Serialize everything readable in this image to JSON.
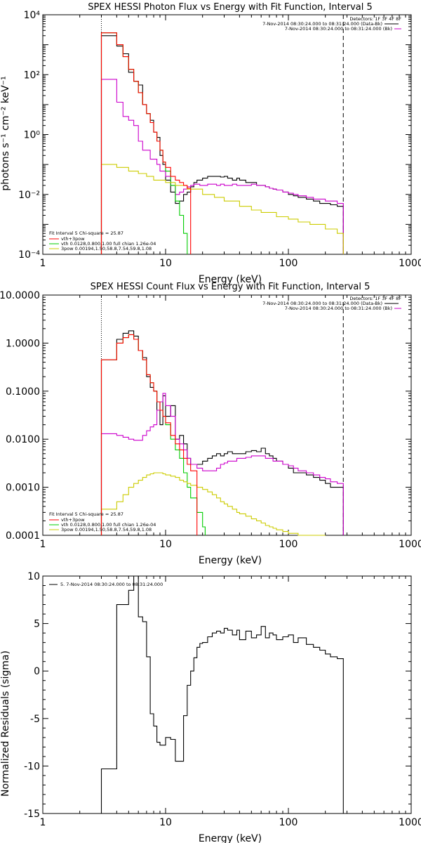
{
  "chart_data": [
    {
      "id": "photon",
      "type": "line",
      "title": "SPEX HESSI Photon Flux vs Energy with Fit Function, Interval 5",
      "xlabel": "Energy (keV)",
      "ylabel": "photons s⁻¹ cm⁻² keV⁻¹",
      "xlog": true,
      "ylog": true,
      "xlim": [
        1,
        1000
      ],
      "ylim": [
        0.0001,
        10000
      ],
      "xticks": [
        1,
        10,
        100,
        1000
      ],
      "xtick_labels": [
        "1",
        "10",
        "100",
        "1000"
      ],
      "yticks": [
        0.0001,
        0.01,
        1,
        100,
        10000
      ],
      "ytick_labels": [
        "10⁻⁴",
        "10⁻²",
        "10⁰",
        "10²",
        "10⁴"
      ],
      "vlines": [
        {
          "x": 3,
          "style": "dotted"
        },
        {
          "x": 280,
          "style": "dashed"
        }
      ],
      "detectors_line": "Detectors: 1F 3F 4F 8F",
      "header_lines": [
        {
          "text": "7-Nov-2014 08:30:24.000 to 08:31:24.000 (Data-Bk)",
          "color": "#000000"
        },
        {
          "text": "7-Nov-2014 08:30:24.000 to 08:31:24.000 (Bk)",
          "color": "#cc00cc"
        }
      ],
      "fit_header": "Fit Interval 5   Chi-square = 25.87",
      "fit_legend": [
        {
          "text": "vth+3pow",
          "color": "#ff0000"
        },
        {
          "text": "vth 0.0128,0.800,1.00  full chian 1.26e-04",
          "color": "#00cc00"
        },
        {
          "text": "3pow 0.00194,1.50,58.8,7.54,59.8,1.08",
          "color": "#cccc00"
        }
      ],
      "series": [
        {
          "color": "#000000",
          "x": [
            3,
            3.5,
            4,
            4.5,
            5,
            5.5,
            6,
            6.5,
            7,
            7.5,
            8,
            8.5,
            9,
            9.5,
            10,
            11,
            12,
            13,
            14,
            15,
            16,
            17,
            18,
            19,
            20,
            22,
            24,
            26,
            28,
            30,
            32,
            35,
            38,
            40,
            45,
            50,
            55,
            60,
            65,
            70,
            75,
            80,
            90,
            100,
            110,
            120,
            140,
            160,
            180,
            200,
            220,
            250,
            280
          ],
          "y": [
            2000,
            2000,
            900,
            500,
            120,
            60,
            45,
            10,
            5,
            3,
            1.2,
            0.8,
            0.2,
            0.1,
            0.03,
            0.012,
            0.005,
            0.006,
            0.01,
            0.012,
            0.018,
            0.025,
            0.03,
            0.03,
            0.035,
            0.04,
            0.04,
            0.04,
            0.038,
            0.04,
            0.035,
            0.03,
            0.035,
            0.03,
            0.025,
            0.025,
            0.02,
            0.02,
            0.018,
            0.016,
            0.015,
            0.014,
            0.012,
            0.01,
            0.009,
            0.008,
            0.007,
            0.006,
            0.005,
            0.005,
            0.0045,
            0.004,
            0.004
          ]
        },
        {
          "color": "#cc00cc",
          "x": [
            3,
            3.5,
            4,
            4.5,
            5,
            5.5,
            6,
            6.5,
            7,
            7.5,
            8,
            8.5,
            9,
            9.5,
            10,
            11,
            12,
            13,
            14,
            15,
            16,
            17,
            18,
            19,
            20,
            22,
            24,
            26,
            28,
            30,
            32,
            35,
            38,
            40,
            45,
            50,
            55,
            60,
            65,
            70,
            75,
            80,
            90,
            100,
            110,
            120,
            140,
            160,
            180,
            200,
            220,
            250,
            280
          ],
          "y": [
            70,
            70,
            12,
            4,
            3,
            2,
            0.6,
            0.3,
            0.3,
            0.15,
            0.15,
            0.1,
            0.06,
            0.06,
            0.04,
            0.02,
            0.01,
            0.012,
            0.015,
            0.018,
            0.02,
            0.022,
            0.022,
            0.02,
            0.02,
            0.022,
            0.022,
            0.02,
            0.022,
            0.02,
            0.02,
            0.022,
            0.02,
            0.02,
            0.02,
            0.022,
            0.02,
            0.02,
            0.018,
            0.016,
            0.015,
            0.014,
            0.012,
            0.011,
            0.01,
            0.009,
            0.008,
            0.007,
            0.007,
            0.006,
            0.006,
            0.005,
            0.005
          ]
        },
        {
          "color": "#00cc00",
          "x": [
            3,
            3.5,
            4,
            4.5,
            5,
            5.5,
            6,
            6.5,
            7,
            7.5,
            8,
            8.5,
            9,
            9.5,
            10,
            11,
            12,
            13,
            14,
            15
          ],
          "y": [
            2500,
            2500,
            1000,
            400,
            150,
            60,
            25,
            10,
            5,
            2.5,
            1.2,
            0.6,
            0.3,
            0.12,
            0.06,
            0.02,
            0.006,
            0.002,
            0.0005,
            0.0001
          ]
        },
        {
          "color": "#cccc00",
          "x": [
            3,
            3.5,
            4,
            5,
            6,
            7,
            8,
            10,
            12,
            15,
            20,
            25,
            30,
            40,
            50,
            60,
            80,
            100,
            120,
            150,
            200,
            250,
            280
          ],
          "y": [
            0.1,
            0.1,
            0.08,
            0.06,
            0.05,
            0.04,
            0.03,
            0.025,
            0.02,
            0.015,
            0.01,
            0.008,
            0.006,
            0.004,
            0.003,
            0.0025,
            0.0018,
            0.0015,
            0.0012,
            0.001,
            0.0007,
            0.0005,
            0.0003
          ]
        },
        {
          "color": "#ff0000",
          "x": [
            3,
            3.5,
            4,
            4.5,
            5,
            5.5,
            6,
            6.5,
            7,
            7.5,
            8,
            8.5,
            9,
            9.5,
            10,
            11,
            12,
            13,
            14,
            15,
            16
          ],
          "y": [
            2500,
            2500,
            1000,
            400,
            150,
            60,
            25,
            10,
            5,
            2.5,
            1.2,
            0.6,
            0.3,
            0.12,
            0.08,
            0.04,
            0.03,
            0.025,
            0.02,
            0.016,
            0.015
          ]
        }
      ]
    },
    {
      "id": "count",
      "type": "line",
      "title": "SPEX HESSI Count Flux vs Energy with Fit Function, Interval 5",
      "xlabel": "Energy (keV)",
      "ylabel": "",
      "xlog": true,
      "ylog": true,
      "xlim": [
        1,
        1000
      ],
      "ylim": [
        0.0001,
        10
      ],
      "xticks": [
        1,
        10,
        100,
        1000
      ],
      "xtick_labels": [
        "1",
        "10",
        "100",
        "1000"
      ],
      "yticks": [
        0.0001,
        0.001,
        0.01,
        0.1,
        1,
        10
      ],
      "ytick_labels": [
        "0.0001",
        "0.0010",
        "0.0100",
        "0.1000",
        "1.0000",
        "10.0000"
      ],
      "vlines": [
        {
          "x": 3,
          "style": "dotted"
        },
        {
          "x": 280,
          "style": "dashed"
        }
      ],
      "detectors_line": "Detectors: 1F 3F 4F 8F",
      "header_lines": [
        {
          "text": "7-Nov-2014 08:30:24.000 to 08:31:24.000 (Data-Bk)",
          "color": "#000000"
        },
        {
          "text": "7-Nov-2014 08:30:24.000 to 08:31:24.000 (Bk)",
          "color": "#cc00cc"
        }
      ],
      "fit_header": "Fit Interval 5   Chi-square = 25.87",
      "fit_legend": [
        {
          "text": "vth+3pow",
          "color": "#ff0000"
        },
        {
          "text": "vth 0.0128,0.800,1.00  full chian 1.26e-04",
          "color": "#00cc00"
        },
        {
          "text": "3pow 0.00194,1.50,58.8,7.54,59.8,1.08",
          "color": "#cccc00"
        }
      ],
      "series": [
        {
          "color": "#000000",
          "x": [
            3,
            3.5,
            4,
            4.5,
            5,
            5.5,
            6,
            6.5,
            7,
            7.5,
            8,
            8.5,
            9,
            9.5,
            10,
            11,
            12,
            13,
            14,
            15,
            16,
            18,
            20,
            22,
            24,
            26,
            28,
            30,
            32,
            35,
            38,
            40,
            45,
            50,
            55,
            60,
            65,
            70,
            75,
            80,
            90,
            100,
            110,
            120,
            140,
            160,
            180,
            200,
            220,
            250,
            280
          ],
          "y": [
            0.45,
            0.45,
            1.2,
            1.6,
            1.8,
            1.4,
            0.7,
            0.5,
            0.2,
            0.12,
            0.1,
            0.04,
            0.02,
            0.08,
            0.03,
            0.05,
            0.01,
            0.012,
            0.008,
            0.004,
            0.003,
            0.003,
            0.0035,
            0.004,
            0.0045,
            0.005,
            0.0045,
            0.005,
            0.0055,
            0.005,
            0.005,
            0.005,
            0.0055,
            0.0058,
            0.0055,
            0.0065,
            0.005,
            0.0045,
            0.004,
            0.0035,
            0.003,
            0.0025,
            0.002,
            0.002,
            0.0018,
            0.0016,
            0.0014,
            0.0012,
            0.001,
            0.001,
            0.0008
          ]
        },
        {
          "color": "#cc00cc",
          "x": [
            3,
            3.5,
            4,
            4.5,
            5,
            5.5,
            6,
            6.5,
            7,
            7.5,
            8,
            8.5,
            9,
            9.5,
            10,
            11,
            12,
            13,
            14,
            15,
            16,
            18,
            20,
            22,
            24,
            26,
            28,
            30,
            32,
            35,
            38,
            40,
            45,
            50,
            55,
            60,
            65,
            70,
            75,
            80,
            90,
            100,
            110,
            120,
            140,
            160,
            180,
            200,
            220,
            250,
            280
          ],
          "y": [
            0.013,
            0.013,
            0.012,
            0.011,
            0.01,
            0.0095,
            0.0095,
            0.012,
            0.015,
            0.018,
            0.02,
            0.04,
            0.06,
            0.09,
            0.05,
            0.03,
            0.01,
            0.008,
            0.006,
            0.004,
            0.003,
            0.0025,
            0.0022,
            0.0022,
            0.0022,
            0.0025,
            0.003,
            0.0032,
            0.0035,
            0.0035,
            0.004,
            0.004,
            0.0042,
            0.0045,
            0.0045,
            0.0045,
            0.004,
            0.004,
            0.0035,
            0.0035,
            0.003,
            0.0028,
            0.0025,
            0.0022,
            0.002,
            0.0018,
            0.0016,
            0.0015,
            0.0013,
            0.0012,
            0.001
          ]
        },
        {
          "color": "#00cc00",
          "x": [
            3,
            3.5,
            4,
            4.5,
            5,
            5.5,
            6,
            6.5,
            7,
            7.5,
            8,
            8.5,
            9,
            9.5,
            10,
            11,
            12,
            13,
            14,
            15,
            16,
            18,
            20,
            21
          ],
          "y": [
            0.45,
            0.45,
            1.0,
            1.3,
            1.5,
            1.2,
            0.7,
            0.45,
            0.22,
            0.15,
            0.1,
            0.06,
            0.04,
            0.03,
            0.02,
            0.01,
            0.006,
            0.004,
            0.002,
            0.001,
            0.0006,
            0.0003,
            0.00015,
            0.0001
          ]
        },
        {
          "color": "#cccc00",
          "x": [
            3,
            3.5,
            4,
            4.5,
            5,
            5.5,
            6,
            6.5,
            7,
            7.5,
            8,
            8.5,
            9,
            9.5,
            10,
            11,
            12,
            13,
            14,
            15,
            16,
            18,
            20,
            22,
            24,
            26,
            28,
            30,
            32,
            35,
            38,
            40,
            45,
            50,
            55,
            60,
            65,
            70,
            75,
            80,
            90,
            100,
            110,
            120,
            140,
            160,
            180,
            200
          ],
          "y": [
            0.00035,
            0.00035,
            0.0005,
            0.0007,
            0.001,
            0.0012,
            0.0014,
            0.0016,
            0.0018,
            0.0019,
            0.002,
            0.002,
            0.002,
            0.0019,
            0.0018,
            0.0017,
            0.0016,
            0.0014,
            0.0013,
            0.0012,
            0.0011,
            0.001,
            0.0009,
            0.0008,
            0.0007,
            0.0006,
            0.0005,
            0.00045,
            0.0004,
            0.00035,
            0.0003,
            0.00028,
            0.00025,
            0.00022,
            0.0002,
            0.00018,
            0.00016,
            0.00015,
            0.00014,
            0.00013,
            0.00012,
            0.00011,
            0.00011,
            0.0001,
            0.0001,
            0.0001,
            0.0001,
            0.0001
          ]
        },
        {
          "color": "#ff0000",
          "x": [
            3,
            3.5,
            4,
            4.5,
            5,
            5.5,
            6,
            6.5,
            7,
            7.5,
            8,
            8.5,
            9,
            9.5,
            10,
            11,
            12,
            13,
            14,
            15,
            16,
            18
          ],
          "y": [
            0.45,
            0.45,
            1.0,
            1.3,
            1.5,
            1.2,
            0.7,
            0.45,
            0.22,
            0.15,
            0.1,
            0.06,
            0.04,
            0.03,
            0.022,
            0.012,
            0.008,
            0.006,
            0.004,
            0.003,
            0.0022,
            0.0015
          ]
        }
      ]
    },
    {
      "id": "resid",
      "type": "line",
      "title": "",
      "xlabel": "Energy (keV)",
      "ylabel": "Normalized Residuals (sigma)",
      "xlog": true,
      "ylog": false,
      "xlim": [
        1,
        1000
      ],
      "ylim": [
        -15,
        10
      ],
      "xticks": [
        1,
        10,
        100,
        1000
      ],
      "xtick_labels": [
        "1",
        "10",
        "100",
        "1000"
      ],
      "yticks": [
        -15,
        -10,
        -5,
        0,
        5,
        10
      ],
      "ytick_labels": [
        "-15",
        "-10",
        "-5",
        "0",
        "5",
        "10"
      ],
      "legend": "5.  7-Nov-2014 08:30:24.000 to 08:31:24.000",
      "series": [
        {
          "color": "#000000",
          "x": [
            3,
            3.5,
            4,
            4.5,
            5,
            5.5,
            6,
            6.5,
            7,
            7.5,
            8,
            8.5,
            9,
            9.5,
            10,
            11,
            12,
            13,
            14,
            15,
            16,
            17,
            18,
            19,
            20,
            22,
            24,
            26,
            28,
            30,
            32,
            35,
            38,
            40,
            45,
            50,
            55,
            60,
            65,
            70,
            75,
            80,
            90,
            100,
            110,
            120,
            140,
            160,
            180,
            200,
            220,
            250,
            280
          ],
          "y": [
            -10.3,
            -10.3,
            7,
            7,
            8.5,
            10,
            5.7,
            5.2,
            1.5,
            -4.5,
            -5.8,
            -7.5,
            -7.8,
            -7.8,
            -7,
            -7.2,
            -9.5,
            -9.5,
            -4.7,
            -1.5,
            0,
            1.4,
            2.5,
            2.9,
            3,
            3.6,
            4,
            4.2,
            4,
            4.5,
            4.3,
            3.8,
            4.3,
            3.3,
            4.2,
            3.5,
            3.8,
            4.7,
            3.5,
            4,
            3.8,
            3.3,
            3.6,
            3.8,
            3,
            3.5,
            2.8,
            2.5,
            2.2,
            1.8,
            1.5,
            1.3,
            1.2
          ]
        }
      ]
    }
  ]
}
